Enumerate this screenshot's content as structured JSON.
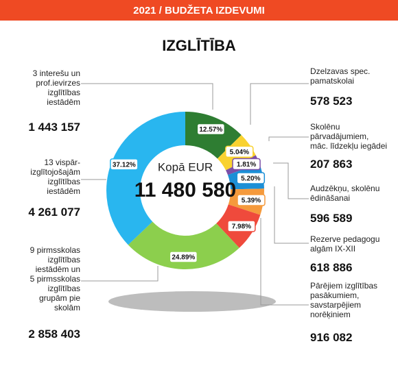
{
  "chart_data": {
    "type": "donut",
    "header": "2021 / BUDŽETA IZDEVUMI",
    "title": "IZGLĪTĪBA",
    "total_label": "Kopā EUR",
    "total": "11 480 580",
    "categories": [
      "3 interešu un\nprof.ievirzes\nizglītības\niestādēm",
      "Dzelzavas spec.\npamatskolai",
      "Skolēnu\npārvadājumiem,\nmāc. līdzekļu iegādei",
      "Audzēkņu, skolēnu\nēdināšanai",
      "Rezerve pedagogu\nalgām IX-XII",
      "Pārējiem izglītības\npasākumiem,\nsavstarpējiem\nnorēķiniem",
      "9 pirmsskolas\nizglītības\niestādēm un\n5 pirmsskolas\nizglītības\ngrupām pie\nskolām",
      "13 vispār-\nizglītojošajām\nizglītības\niestādēm"
    ],
    "values": [
      12.57,
      5.04,
      1.81,
      5.2,
      5.39,
      7.98,
      24.89,
      37.12
    ],
    "value_labels": [
      "12.57%",
      "5.04%",
      "1.81%",
      "5.20%",
      "5.39%",
      "7.98%",
      "24.89%",
      "37.12%"
    ],
    "amounts": [
      "1 443 157",
      "578 523",
      "207 863",
      "596 589",
      "618 886",
      "916 082",
      "2 858 403",
      "4 261 077"
    ],
    "colors": [
      "#2e7d32",
      "#f9d230",
      "#7b4fa8",
      "#1c8fd6",
      "#f59a3c",
      "#ef4a3c",
      "#8ccf4d",
      "#29b6ef"
    ]
  }
}
